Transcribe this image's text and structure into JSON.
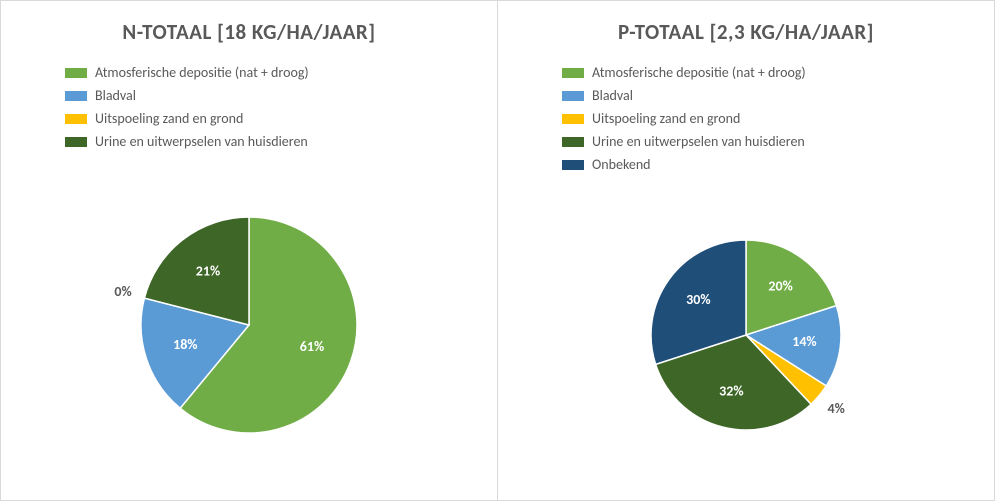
{
  "background_color": "#ffffff",
  "panel_border_color": "#d9d9d9",
  "title_color": "#595959",
  "legend_text_color": "#595959",
  "title_fontsize": 21,
  "legend_fontsize": 14,
  "label_fontsize": 14,
  "left_chart": {
    "type": "pie",
    "title": "N-TOTAAL [18 KG/HA/JAAR]",
    "pie_radius": 108,
    "slices": [
      {
        "label": "Atmosferische depositie (nat + droog)",
        "value": 61,
        "percent_label": "61%",
        "color": "#70ad47",
        "label_color": "#ffffff"
      },
      {
        "label": "Bladval",
        "value": 18,
        "percent_label": "18%",
        "color": "#5b9bd5",
        "label_color": "#ffffff"
      },
      {
        "label": "Uitspoeling zand en grond",
        "value": 0,
        "percent_label": "0%",
        "color": "#ffc000",
        "label_color": "#595959"
      },
      {
        "label": "Urine en uitwerpselen van huisdieren",
        "value": 21,
        "percent_label": "21%",
        "color": "#3d6627",
        "label_color": "#ffffff"
      }
    ]
  },
  "right_chart": {
    "type": "pie",
    "title": "P-TOTAAL [2,3 KG/HA/JAAR]",
    "pie_radius": 95,
    "slices": [
      {
        "label": "Atmosferische depositie (nat + droog)",
        "value": 20,
        "percent_label": "20%",
        "color": "#70ad47",
        "label_color": "#ffffff"
      },
      {
        "label": "Bladval",
        "value": 14,
        "percent_label": "14%",
        "color": "#5b9bd5",
        "label_color": "#ffffff"
      },
      {
        "label": "Uitspoeling zand en grond",
        "value": 4,
        "percent_label": "4%",
        "color": "#ffc000",
        "label_color": "#595959"
      },
      {
        "label": "Urine en uitwerpselen van huisdieren",
        "value": 32,
        "percent_label": "32%",
        "color": "#3d6627",
        "label_color": "#ffffff"
      },
      {
        "label": "Onbekend",
        "value": 30,
        "percent_label": "30%",
        "color": "#1f4e79",
        "label_color": "#ffffff"
      }
    ]
  }
}
